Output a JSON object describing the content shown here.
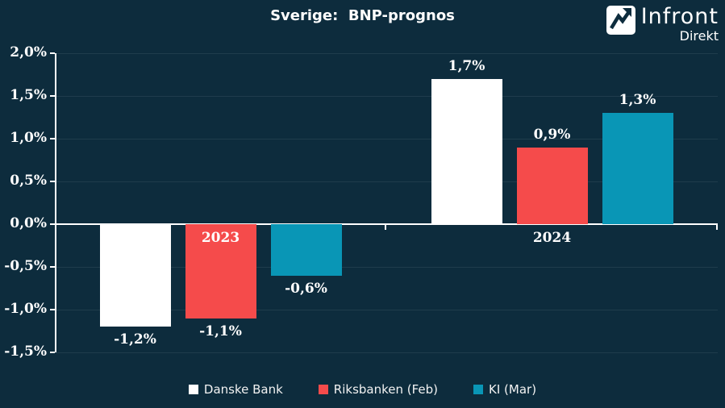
{
  "title": "Sverige:  BNP-prognos",
  "logo": {
    "brand": "Infront",
    "sub": "Direkt"
  },
  "colors": {
    "background": "#0d2c3d",
    "axis": "#ffffff",
    "grid": "rgba(255,255,255,0.08)",
    "text": "#ffffff"
  },
  "chart_data": {
    "type": "bar",
    "title": "Sverige: BNP-prognos",
    "categories": [
      "2023",
      "2024"
    ],
    "series": [
      {
        "name": "Danske Bank",
        "color": "#ffffff",
        "values": [
          -1.2,
          1.7
        ],
        "value_labels": [
          "-1,2%",
          "1,7%"
        ]
      },
      {
        "name": "Riksbanken (Feb)",
        "color": "#f54b4b",
        "values": [
          -1.1,
          0.9
        ],
        "value_labels": [
          "-1,1%",
          "0,9%"
        ]
      },
      {
        "name": "KI (Mar)",
        "color": "#0996b6",
        "values": [
          -0.6,
          1.3
        ],
        "value_labels": [
          "-0,6%",
          "1,3%"
        ]
      }
    ],
    "xlabel": "",
    "ylabel": "",
    "ylim": [
      -1.5,
      2.0
    ],
    "ytick_step": 0.5,
    "ytick_labels": [
      "2,0%",
      "1,5%",
      "1,0%",
      "0,5%",
      "0,0%",
      "-0,5%",
      "-1,0%",
      "-1,5%"
    ],
    "grid": true,
    "legend_position": "bottom"
  }
}
